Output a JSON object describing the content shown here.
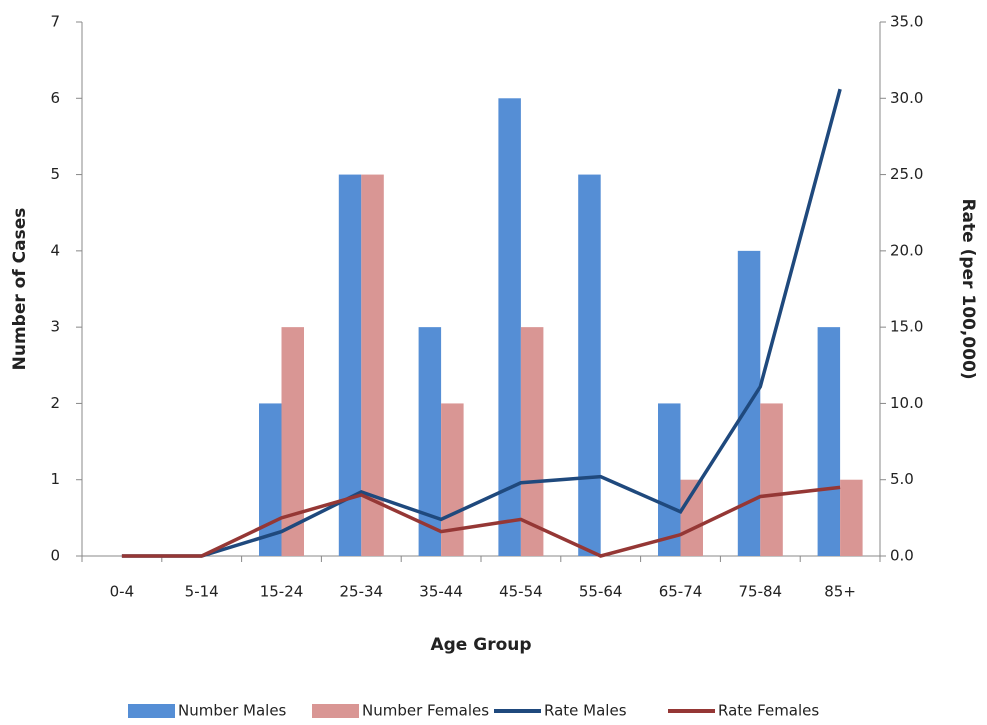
{
  "chart_data": {
    "type": "bar_line",
    "x_label": "Age Group",
    "y_label": "Number of Cases",
    "y2_label": "Rate (per 100,000)",
    "categories": [
      "0-4",
      "5-14",
      "15-24",
      "25-34",
      "35-44",
      "45-54",
      "55-64",
      "65-74",
      "75-84",
      "85+"
    ],
    "series": [
      {
        "name": "Number Males",
        "type": "bar",
        "color": "#558ed5",
        "values": [
          0,
          0,
          2,
          5,
          3,
          6,
          5,
          2,
          4,
          3
        ]
      },
      {
        "name": "Number Females",
        "type": "bar",
        "color": "#d99694",
        "values": [
          0,
          0,
          3,
          5,
          2,
          3,
          0,
          1,
          2,
          1
        ]
      },
      {
        "name": "Rate Males",
        "type": "line",
        "axis": "y2",
        "color": "#1f497d",
        "values": [
          0,
          0,
          1.6,
          4.2,
          2.4,
          4.8,
          5.2,
          2.9,
          11.1,
          30.6
        ]
      },
      {
        "name": "Rate Females",
        "type": "line",
        "axis": "y2",
        "color": "#953735",
        "values": [
          0,
          0,
          2.5,
          4.0,
          1.6,
          2.4,
          0,
          1.4,
          3.9,
          4.5
        ]
      }
    ],
    "ylim": [
      0,
      7
    ],
    "yticks": [
      0,
      1,
      2,
      3,
      4,
      5,
      6,
      7
    ],
    "y2lim": [
      0,
      35
    ],
    "y2ticks": [
      {
        "value": 0,
        "label": "0.0"
      },
      {
        "value": 5,
        "label": "5.0"
      },
      {
        "value": 10,
        "label": "10.0"
      },
      {
        "value": 15,
        "label": "15.0"
      },
      {
        "value": 20,
        "label": "20.0"
      },
      {
        "value": 25,
        "label": "25.0"
      },
      {
        "value": 30,
        "label": "30.0"
      },
      {
        "value": 35,
        "label": "35.0"
      }
    ],
    "legend": "bottom"
  }
}
